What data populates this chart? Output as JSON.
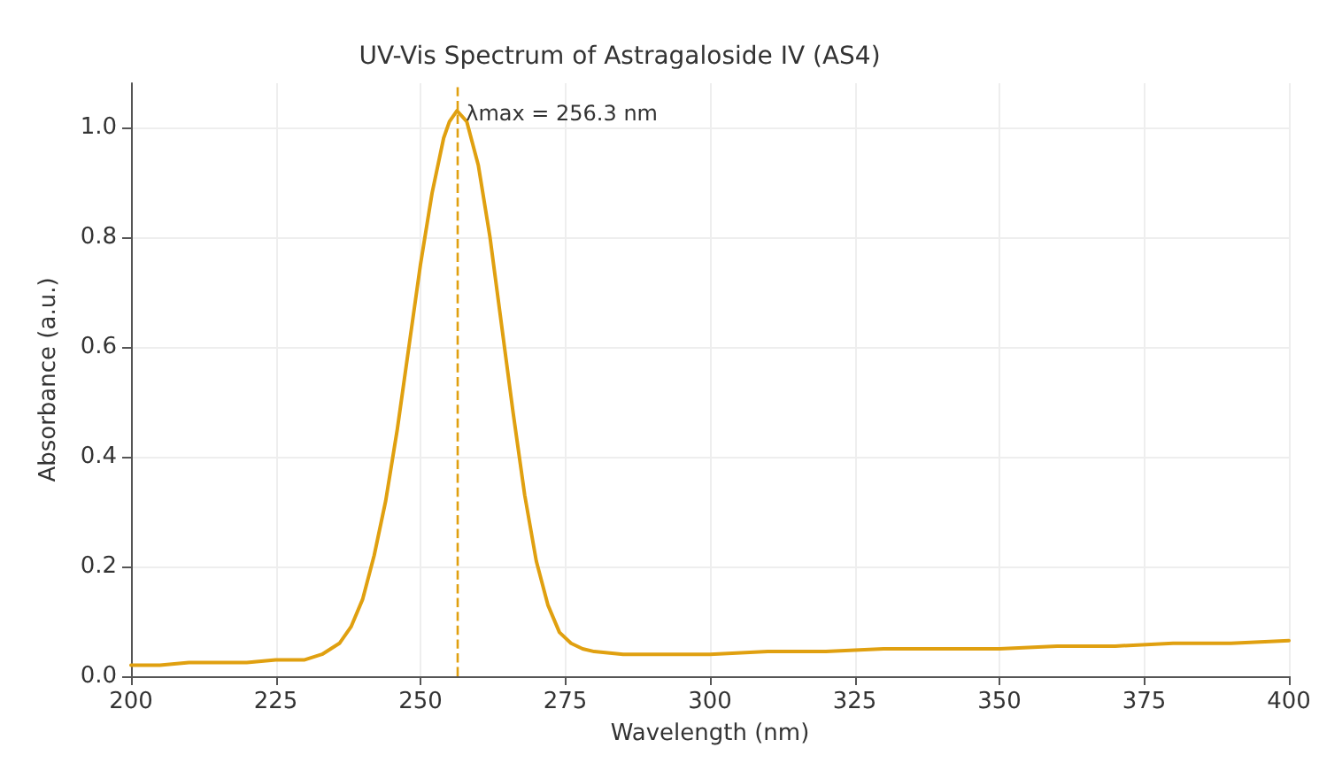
{
  "chart_data": {
    "type": "line",
    "title": "UV-Vis Spectrum of Astragaloside IV (AS4)",
    "xlabel": "Wavelength (nm)",
    "ylabel": "Absorbance (a.u.)",
    "x": [
      200,
      205,
      210,
      215,
      220,
      225,
      230,
      233,
      236,
      238,
      240,
      242,
      244,
      246,
      248,
      250,
      252,
      254,
      255,
      256.3,
      258,
      260,
      262,
      264,
      266,
      268,
      270,
      272,
      274,
      276,
      278,
      280,
      285,
      290,
      300,
      310,
      320,
      330,
      340,
      350,
      360,
      370,
      380,
      390,
      400
    ],
    "series": [
      {
        "color": "#e0a010",
        "values": [
          0.02,
          0.02,
          0.025,
          0.025,
          0.025,
          0.03,
          0.03,
          0.04,
          0.06,
          0.09,
          0.14,
          0.22,
          0.32,
          0.45,
          0.6,
          0.75,
          0.88,
          0.98,
          1.01,
          1.03,
          1.01,
          0.93,
          0.8,
          0.64,
          0.48,
          0.33,
          0.21,
          0.13,
          0.08,
          0.06,
          0.05,
          0.045,
          0.04,
          0.04,
          0.04,
          0.045,
          0.045,
          0.05,
          0.05,
          0.05,
          0.055,
          0.055,
          0.06,
          0.06,
          0.065
        ]
      }
    ],
    "xlim": [
      200,
      400
    ],
    "xticks": [
      200,
      225,
      250,
      275,
      300,
      325,
      350,
      375,
      400
    ],
    "ylim": [
      0,
      1.08
    ],
    "yticks": [
      {
        "value": 0,
        "label": "0.0"
      },
      {
        "value": 0.2,
        "label": "0.2"
      },
      {
        "value": 0.4,
        "label": "0.4"
      },
      {
        "value": 0.6,
        "label": "0.6"
      },
      {
        "value": 0.8,
        "label": "0.8"
      },
      {
        "value": 1,
        "label": "1.0"
      }
    ],
    "ref_lines": [
      {
        "axis": "x",
        "value": 256.3,
        "label": "λmax = 256.3 nm",
        "color": "#e0a010",
        "line_style": "dashed"
      }
    ],
    "grid": true,
    "marker": "none",
    "line_style": "solid"
  }
}
